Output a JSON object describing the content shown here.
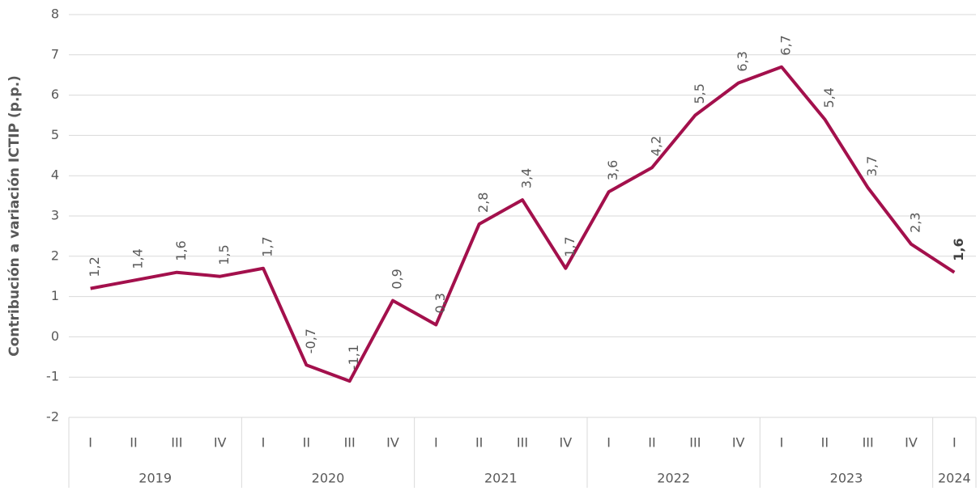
{
  "chart_data": {
    "type": "line",
    "y_label": "Contribución a variación ICTIP (p.p.)",
    "groups": [
      {
        "label": "2019",
        "categories": [
          "I",
          "II",
          "III",
          "IV"
        ]
      },
      {
        "label": "2020",
        "categories": [
          "I",
          "II",
          "III",
          "IV"
        ]
      },
      {
        "label": "2021",
        "categories": [
          "I",
          "II",
          "III",
          "IV"
        ]
      },
      {
        "label": "2022",
        "categories": [
          "I",
          "II",
          "III",
          "IV"
        ]
      },
      {
        "label": "2023",
        "categories": [
          "I",
          "II",
          "III",
          "IV"
        ]
      },
      {
        "label": "2024",
        "categories": [
          "I"
        ]
      }
    ],
    "series": [
      {
        "color": "#a3104c",
        "values": [
          1.2,
          1.4,
          1.6,
          1.5,
          1.7,
          -0.7,
          -1.1,
          0.9,
          0.3,
          2.8,
          3.4,
          1.7,
          3.6,
          4.2,
          5.5,
          6.3,
          6.7,
          5.4,
          3.7,
          2.3,
          1.6
        ],
        "value_labels": [
          "1,2",
          "1,4",
          "1,6",
          "1,5",
          "1,7",
          "-0,7",
          "-1,1",
          "0,9",
          "0,3",
          "2,8",
          "3,4",
          "1,7",
          "3,6",
          "4,2",
          "5,5",
          "6,3",
          "6,7",
          "5,4",
          "3,7",
          "2,3",
          "1,6"
        ]
      }
    ],
    "bold_last_label": true,
    "ylim": [
      -2,
      8
    ],
    "yticks": [
      -2,
      -1,
      0,
      1,
      2,
      3,
      4,
      5,
      6,
      7,
      8
    ],
    "grid": true
  }
}
